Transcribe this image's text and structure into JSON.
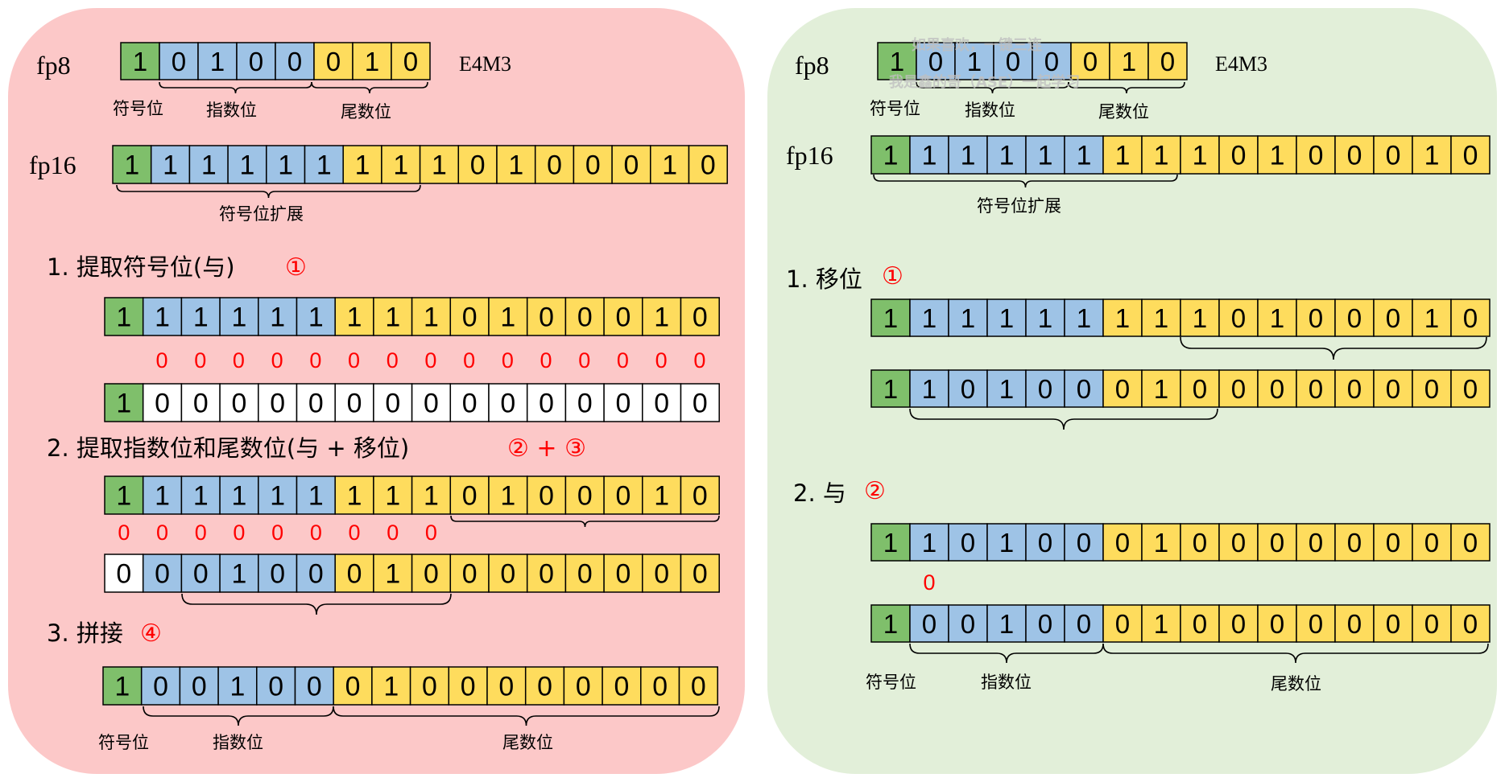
{
  "colors": {
    "left_panel": "#fcc8c8",
    "right_panel": "#e2efd9",
    "sign": "#7fbf6b",
    "exponent": "#9ec3e6",
    "mantissa": "#fedc5d",
    "white": "#ffffff",
    "mask_zero": "#ff0000",
    "circled": "#ff0000"
  },
  "labels": {
    "fp8": "fp8",
    "fp16": "fp16",
    "e4m3": "E4M3",
    "sign_bit": "符号位",
    "exponent_bits": "指数位",
    "mantissa_bits": "尾数位",
    "sign_extend": "符号位扩展"
  },
  "left": {
    "fp8_bits": [
      "1",
      "0",
      "1",
      "0",
      "0",
      "0",
      "1",
      "0"
    ],
    "fp16_bits": [
      "1",
      "1",
      "1",
      "1",
      "1",
      "1",
      "1",
      "1",
      "1",
      "0",
      "1",
      "0",
      "0",
      "0",
      "1",
      "0"
    ],
    "step1": {
      "text": "1. 提取符号位(与)",
      "mark": "①"
    },
    "step1_input": [
      "1",
      "1",
      "1",
      "1",
      "1",
      "1",
      "1",
      "1",
      "1",
      "0",
      "1",
      "0",
      "0",
      "0",
      "1",
      "0"
    ],
    "step1_mask": [
      "0",
      "0",
      "0",
      "0",
      "0",
      "0",
      "0",
      "0",
      "0",
      "0",
      "0",
      "0",
      "0",
      "0",
      "0"
    ],
    "step1_result": [
      "1",
      "0",
      "0",
      "0",
      "0",
      "0",
      "0",
      "0",
      "0",
      "0",
      "0",
      "0",
      "0",
      "0",
      "0",
      "0"
    ],
    "step2": {
      "text": "2. 提取指数位和尾数位(与 + 移位)",
      "mark": "② + ③"
    },
    "step2_input": [
      "1",
      "1",
      "1",
      "1",
      "1",
      "1",
      "1",
      "1",
      "1",
      "0",
      "1",
      "0",
      "0",
      "0",
      "1",
      "0"
    ],
    "step2_mask": [
      "0",
      "0",
      "0",
      "0",
      "0",
      "0",
      "0",
      "0",
      "0"
    ],
    "step2_result": [
      "0",
      "0",
      "0",
      "1",
      "0",
      "0",
      "0",
      "1",
      "0",
      "0",
      "0",
      "0",
      "0",
      "0",
      "0",
      "0"
    ],
    "step3": {
      "text": "3. 拼接",
      "mark": "④"
    },
    "step3_result": [
      "1",
      "0",
      "0",
      "1",
      "0",
      "0",
      "0",
      "1",
      "0",
      "0",
      "0",
      "0",
      "0",
      "0",
      "0",
      "0"
    ]
  },
  "right": {
    "watermark_line1": "如果喜欢，一键三连",
    "watermark_line2": "我是鑫的哥（ASE）一起学习",
    "fp8_bits": [
      "1",
      "0",
      "1",
      "0",
      "0",
      "0",
      "1",
      "0"
    ],
    "fp16_bits": [
      "1",
      "1",
      "1",
      "1",
      "1",
      "1",
      "1",
      "1",
      "1",
      "0",
      "1",
      "0",
      "0",
      "0",
      "1",
      "0"
    ],
    "step1": {
      "text": "1. 移位",
      "mark": "①"
    },
    "step1_input": [
      "1",
      "1",
      "1",
      "1",
      "1",
      "1",
      "1",
      "1",
      "1",
      "0",
      "1",
      "0",
      "0",
      "0",
      "1",
      "0"
    ],
    "step1_result": [
      "1",
      "1",
      "0",
      "1",
      "0",
      "0",
      "0",
      "1",
      "0",
      "0",
      "0",
      "0",
      "0",
      "0",
      "0",
      "0"
    ],
    "step2": {
      "text": "2. 与",
      "mark": "②"
    },
    "step2_input": [
      "1",
      "1",
      "0",
      "1",
      "0",
      "0",
      "0",
      "1",
      "0",
      "0",
      "0",
      "0",
      "0",
      "0",
      "0",
      "0"
    ],
    "step2_mask": [
      "0"
    ],
    "step2_result": [
      "1",
      "0",
      "0",
      "1",
      "0",
      "0",
      "0",
      "1",
      "0",
      "0",
      "0",
      "0",
      "0",
      "0",
      "0",
      "0"
    ]
  }
}
